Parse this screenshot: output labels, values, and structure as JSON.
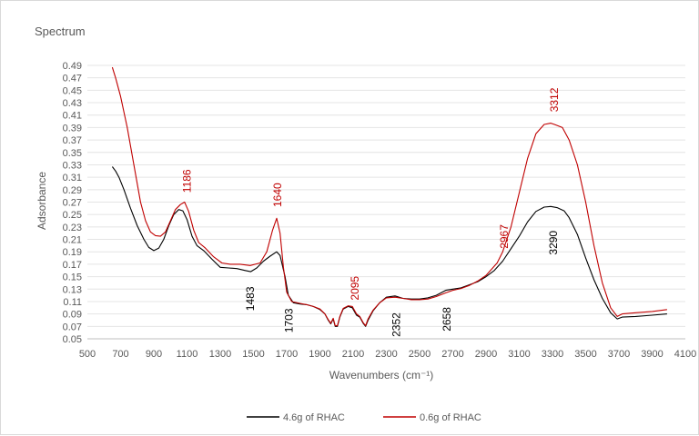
{
  "chart_data": {
    "type": "line",
    "title": "Spectrum",
    "xlabel": "Wavenumbers (cm⁻¹)",
    "ylabel": "Adsorbance",
    "xlim": [
      500,
      4100
    ],
    "ylim": [
      0.05,
      0.49
    ],
    "x_ticks": [
      500,
      700,
      900,
      1100,
      1300,
      1500,
      1700,
      1900,
      2100,
      2300,
      2500,
      2700,
      2900,
      3100,
      3300,
      3500,
      3700,
      3900,
      4100
    ],
    "y_ticks": [
      0.05,
      0.07,
      0.09,
      0.11,
      0.13,
      0.15,
      0.17,
      0.19,
      0.21,
      0.23,
      0.25,
      0.27,
      0.29,
      0.31,
      0.33,
      0.35,
      0.37,
      0.39,
      0.41,
      0.43,
      0.45,
      0.47,
      0.49
    ],
    "grid": "horizontal",
    "legend_position": "bottom",
    "series": [
      {
        "name": "4.6g of RHAC",
        "color": "#000000",
        "points": [
          [
            650,
            0.327
          ],
          [
            670,
            0.32
          ],
          [
            690,
            0.31
          ],
          [
            720,
            0.29
          ],
          [
            760,
            0.26
          ],
          [
            800,
            0.232
          ],
          [
            840,
            0.21
          ],
          [
            870,
            0.197
          ],
          [
            900,
            0.192
          ],
          [
            930,
            0.196
          ],
          [
            960,
            0.21
          ],
          [
            990,
            0.232
          ],
          [
            1020,
            0.25
          ],
          [
            1050,
            0.258
          ],
          [
            1075,
            0.256
          ],
          [
            1100,
            0.242
          ],
          [
            1130,
            0.215
          ],
          [
            1160,
            0.2
          ],
          [
            1200,
            0.192
          ],
          [
            1250,
            0.178
          ],
          [
            1300,
            0.165
          ],
          [
            1350,
            0.164
          ],
          [
            1400,
            0.163
          ],
          [
            1450,
            0.16
          ],
          [
            1483,
            0.158
          ],
          [
            1520,
            0.164
          ],
          [
            1560,
            0.175
          ],
          [
            1600,
            0.183
          ],
          [
            1640,
            0.19
          ],
          [
            1660,
            0.184
          ],
          [
            1690,
            0.15
          ],
          [
            1710,
            0.12
          ],
          [
            1740,
            0.108
          ],
          [
            1780,
            0.106
          ],
          [
            1820,
            0.105
          ],
          [
            1860,
            0.102
          ],
          [
            1900,
            0.097
          ],
          [
            1930,
            0.09
          ],
          [
            1950,
            0.08
          ],
          [
            1965,
            0.074
          ],
          [
            1980,
            0.082
          ],
          [
            1992,
            0.07
          ],
          [
            2005,
            0.07
          ],
          [
            2020,
            0.085
          ],
          [
            2040,
            0.098
          ],
          [
            2070,
            0.102
          ],
          [
            2095,
            0.1
          ],
          [
            2120,
            0.088
          ],
          [
            2140,
            0.085
          ],
          [
            2160,
            0.075
          ],
          [
            2175,
            0.07
          ],
          [
            2190,
            0.08
          ],
          [
            2220,
            0.095
          ],
          [
            2260,
            0.108
          ],
          [
            2300,
            0.117
          ],
          [
            2352,
            0.119
          ],
          [
            2400,
            0.115
          ],
          [
            2450,
            0.114
          ],
          [
            2500,
            0.114
          ],
          [
            2550,
            0.116
          ],
          [
            2600,
            0.12
          ],
          [
            2658,
            0.128
          ],
          [
            2700,
            0.13
          ],
          [
            2750,
            0.132
          ],
          [
            2800,
            0.137
          ],
          [
            2850,
            0.142
          ],
          [
            2900,
            0.15
          ],
          [
            2950,
            0.16
          ],
          [
            3000,
            0.175
          ],
          [
            3050,
            0.195
          ],
          [
            3100,
            0.215
          ],
          [
            3150,
            0.238
          ],
          [
            3200,
            0.255
          ],
          [
            3250,
            0.262
          ],
          [
            3290,
            0.263
          ],
          [
            3330,
            0.261
          ],
          [
            3370,
            0.256
          ],
          [
            3400,
            0.245
          ],
          [
            3450,
            0.218
          ],
          [
            3500,
            0.18
          ],
          [
            3550,
            0.145
          ],
          [
            3600,
            0.115
          ],
          [
            3650,
            0.092
          ],
          [
            3690,
            0.082
          ],
          [
            3720,
            0.085
          ],
          [
            3800,
            0.086
          ],
          [
            3900,
            0.088
          ],
          [
            3990,
            0.09
          ]
        ]
      },
      {
        "name": "0.6g of RHAC",
        "color": "#c00000",
        "points": [
          [
            650,
            0.487
          ],
          [
            670,
            0.47
          ],
          [
            700,
            0.44
          ],
          [
            740,
            0.39
          ],
          [
            780,
            0.33
          ],
          [
            820,
            0.27
          ],
          [
            850,
            0.24
          ],
          [
            880,
            0.222
          ],
          [
            910,
            0.216
          ],
          [
            940,
            0.215
          ],
          [
            970,
            0.222
          ],
          [
            1000,
            0.24
          ],
          [
            1030,
            0.258
          ],
          [
            1060,
            0.266
          ],
          [
            1085,
            0.27
          ],
          [
            1110,
            0.255
          ],
          [
            1140,
            0.225
          ],
          [
            1170,
            0.205
          ],
          [
            1210,
            0.196
          ],
          [
            1260,
            0.182
          ],
          [
            1310,
            0.172
          ],
          [
            1360,
            0.17
          ],
          [
            1420,
            0.17
          ],
          [
            1480,
            0.168
          ],
          [
            1540,
            0.172
          ],
          [
            1580,
            0.19
          ],
          [
            1615,
            0.225
          ],
          [
            1640,
            0.244
          ],
          [
            1660,
            0.22
          ],
          [
            1680,
            0.165
          ],
          [
            1700,
            0.125
          ],
          [
            1730,
            0.11
          ],
          [
            1780,
            0.107
          ],
          [
            1820,
            0.105
          ],
          [
            1860,
            0.102
          ],
          [
            1900,
            0.098
          ],
          [
            1930,
            0.09
          ],
          [
            1950,
            0.081
          ],
          [
            1965,
            0.075
          ],
          [
            1980,
            0.083
          ],
          [
            1992,
            0.071
          ],
          [
            2005,
            0.071
          ],
          [
            2020,
            0.086
          ],
          [
            2040,
            0.099
          ],
          [
            2070,
            0.103
          ],
          [
            2095,
            0.102
          ],
          [
            2120,
            0.09
          ],
          [
            2140,
            0.086
          ],
          [
            2160,
            0.076
          ],
          [
            2175,
            0.071
          ],
          [
            2190,
            0.082
          ],
          [
            2220,
            0.096
          ],
          [
            2260,
            0.108
          ],
          [
            2300,
            0.116
          ],
          [
            2352,
            0.117
          ],
          [
            2400,
            0.115
          ],
          [
            2450,
            0.113
          ],
          [
            2500,
            0.113
          ],
          [
            2550,
            0.114
          ],
          [
            2600,
            0.118
          ],
          [
            2658,
            0.124
          ],
          [
            2700,
            0.128
          ],
          [
            2750,
            0.131
          ],
          [
            2800,
            0.136
          ],
          [
            2850,
            0.143
          ],
          [
            2900,
            0.152
          ],
          [
            2967,
            0.172
          ],
          [
            3000,
            0.19
          ],
          [
            3050,
            0.23
          ],
          [
            3100,
            0.285
          ],
          [
            3150,
            0.34
          ],
          [
            3200,
            0.38
          ],
          [
            3250,
            0.395
          ],
          [
            3290,
            0.397
          ],
          [
            3312,
            0.395
          ],
          [
            3360,
            0.39
          ],
          [
            3400,
            0.37
          ],
          [
            3450,
            0.33
          ],
          [
            3500,
            0.27
          ],
          [
            3550,
            0.2
          ],
          [
            3600,
            0.14
          ],
          [
            3650,
            0.1
          ],
          [
            3690,
            0.086
          ],
          [
            3720,
            0.09
          ],
          [
            3800,
            0.092
          ],
          [
            3900,
            0.094
          ],
          [
            3990,
            0.097
          ]
        ]
      }
    ],
    "annotations": [
      {
        "text": "1186",
        "x": 1100,
        "y": 0.285,
        "color": "#c00000"
      },
      {
        "text": "1640",
        "x": 1645,
        "y": 0.262,
        "color": "#c00000"
      },
      {
        "text": "2095",
        "x": 2110,
        "y": 0.112,
        "color": "#c00000"
      },
      {
        "text": "2967",
        "x": 3010,
        "y": 0.195,
        "color": "#c00000"
      },
      {
        "text": "3312",
        "x": 3312,
        "y": 0.415,
        "color": "#c00000"
      },
      {
        "text": "1483",
        "x": 1480,
        "y": 0.095,
        "color": "#000000"
      },
      {
        "text": "1703",
        "x": 1715,
        "y": 0.06,
        "color": "#000000"
      },
      {
        "text": "2352",
        "x": 2360,
        "y": 0.053,
        "color": "#000000"
      },
      {
        "text": "2658",
        "x": 2665,
        "y": 0.062,
        "color": "#000000"
      },
      {
        "text": "3290",
        "x": 3305,
        "y": 0.185,
        "color": "#000000"
      }
    ]
  }
}
